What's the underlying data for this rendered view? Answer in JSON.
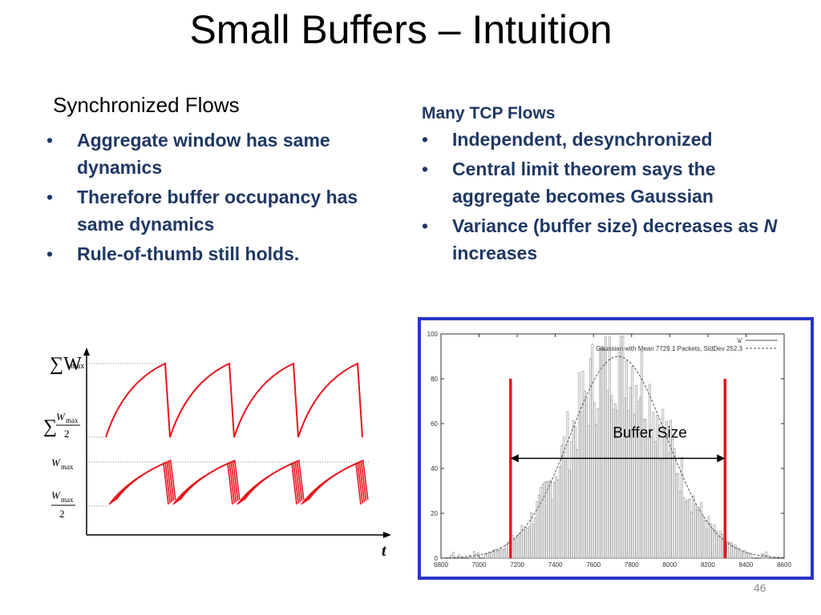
{
  "slide": {
    "title": "Small Buffers – Intuition",
    "page_number": "46"
  },
  "left": {
    "heading": "Synchronized Flows",
    "bullets": [
      "Aggregate window has same dynamics",
      "Therefore buffer occupancy has same dynamics",
      "Rule-of-thumb still holds."
    ],
    "diagram": {
      "y_labels": {
        "sum_wmax_sym": "∑W",
        "sum_wmax_sub": "max",
        "sum_half_sym": "∑",
        "sum_half_num": "W",
        "sum_half_num_sub": "max",
        "sum_half_den": "2",
        "wmax": "W",
        "wmax_sub": "max",
        "half_num": "W",
        "half_num_sub": "max",
        "half_den": "2"
      },
      "x_label": "t",
      "colors": {
        "curve": "#e8141c",
        "axis": "#000000",
        "dotted": "#888888"
      }
    }
  },
  "right": {
    "heading": "Many TCP Flows",
    "bullets": [
      {
        "text": "Independent, desynchronized"
      },
      {
        "text": "Central limit theorem says the aggregate becomes Gaussian"
      },
      {
        "pre": "Variance (buffer size) decreases as ",
        "em": "N",
        "post": " increases"
      }
    ]
  },
  "chart_data": {
    "type": "bar",
    "legend": [
      "'a'",
      "Gaussian with Mean 7729.1 Packets, StdDev 252.3"
    ],
    "legend_placement": "top-right",
    "xlim": [
      6800,
      8600
    ],
    "ylim": [
      0,
      100
    ],
    "x_ticks": [
      6800,
      7000,
      7200,
      7400,
      7600,
      7800,
      8000,
      8200,
      8400,
      8600
    ],
    "y_ticks": [
      0,
      20,
      40,
      60,
      80,
      100
    ],
    "gaussian": {
      "mean": 7729.1,
      "stddev": 252.3,
      "peak": 90
    },
    "bin_width": 10,
    "annotation": {
      "text": "Buffer Size",
      "from": 7165,
      "to": 8290
    },
    "red_lines": [
      7165,
      8290
    ],
    "colors": {
      "bar": "#888888",
      "frame": "#2b35c8",
      "marker": "#e8141c",
      "curve": "#555555"
    }
  }
}
